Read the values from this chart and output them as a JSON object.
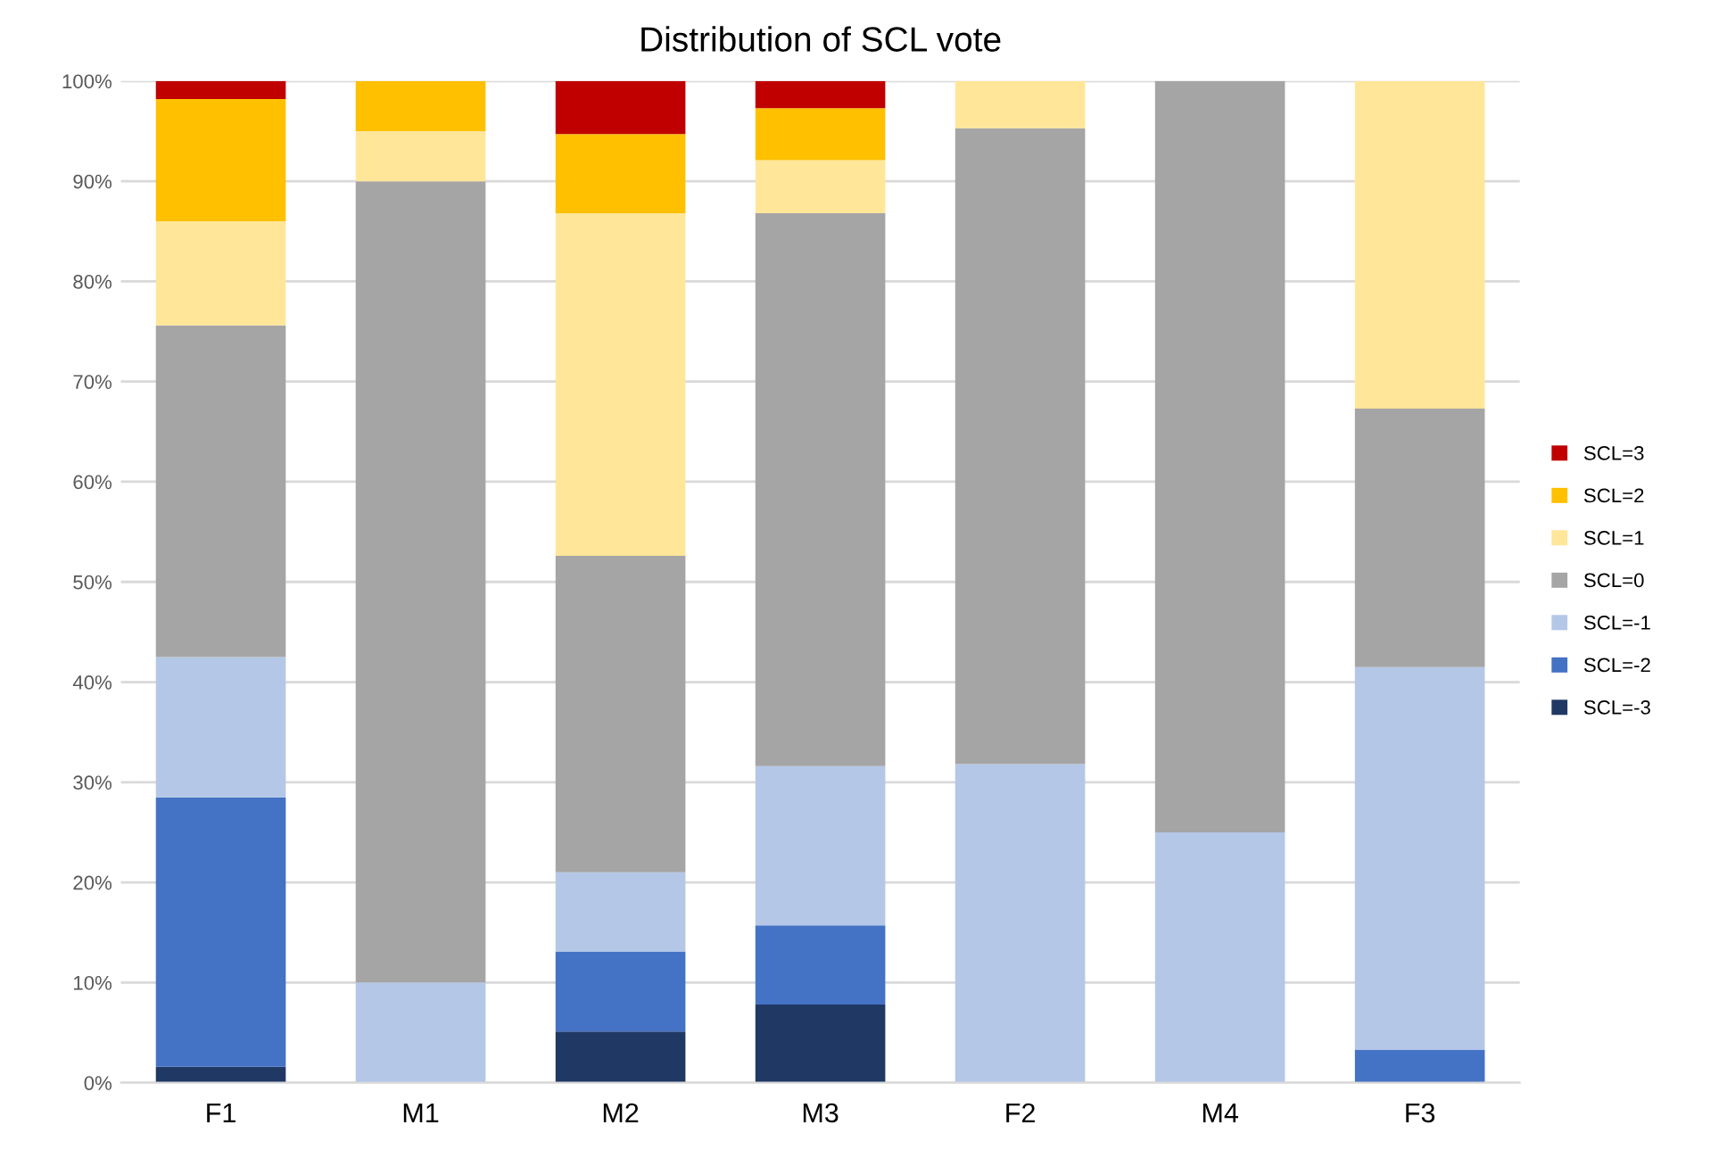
{
  "chart_data": {
    "type": "bar",
    "title": "Distribution of SCL vote",
    "stacked": true,
    "categories": [
      "F1",
      "M1",
      "M2",
      "M3",
      "F2",
      "M4",
      "F3"
    ],
    "series": [
      {
        "name": "SCL=-3",
        "color": "#203864",
        "values": [
          1.6,
          0,
          5.1,
          7.8,
          0,
          0,
          0
        ]
      },
      {
        "name": "SCL=-2",
        "color": "#4472c4",
        "values": [
          26.9,
          0,
          8.0,
          7.9,
          0,
          0,
          3.3
        ]
      },
      {
        "name": "SCL=-1",
        "color": "#b4c7e7",
        "values": [
          14.0,
          10,
          7.9,
          15.9,
          31.8,
          25,
          38.2
        ]
      },
      {
        "name": "SCL=0",
        "color": "#a5a5a5",
        "values": [
          33.1,
          80,
          31.6,
          55.2,
          63.5,
          75,
          25.8
        ]
      },
      {
        "name": "SCL=1",
        "color": "#ffe699",
        "values": [
          10.4,
          5,
          34.2,
          5.3,
          4.7,
          0,
          32.7
        ]
      },
      {
        "name": "SCL=2",
        "color": "#ffc000",
        "values": [
          12.2,
          5,
          7.9,
          5.2,
          0,
          0,
          0
        ]
      },
      {
        "name": "SCL=3",
        "color": "#c00000",
        "values": [
          1.8,
          0,
          5.3,
          2.7,
          0,
          0,
          0
        ]
      }
    ],
    "ylim": [
      0,
      100
    ],
    "yticks": [
      {
        "value": 0,
        "label": "0%"
      },
      {
        "value": 10,
        "label": "10%"
      },
      {
        "value": 20,
        "label": "20%"
      },
      {
        "value": 30,
        "label": "30%"
      },
      {
        "value": 40,
        "label": "40%"
      },
      {
        "value": 50,
        "label": "50%"
      },
      {
        "value": 60,
        "label": "60%"
      },
      {
        "value": 70,
        "label": "70%"
      },
      {
        "value": 80,
        "label": "80%"
      },
      {
        "value": 90,
        "label": "90%"
      },
      {
        "value": 100,
        "label": "100%"
      }
    ],
    "grid": "y",
    "legend": "right"
  }
}
